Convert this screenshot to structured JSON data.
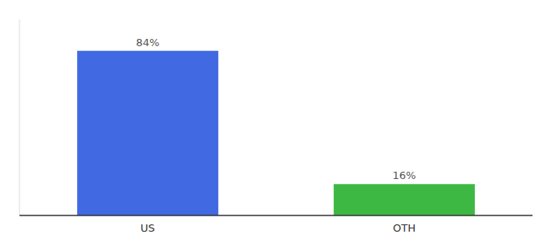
{
  "chart_data": {
    "type": "bar",
    "categories": [
      "US",
      "OTH"
    ],
    "values": [
      84,
      16
    ],
    "value_labels": [
      "84%",
      "16%"
    ],
    "colors": [
      "#4169e1",
      "#3cb843"
    ],
    "ylim": [
      0,
      100
    ],
    "data_labels": true,
    "tick_labels": "x"
  }
}
